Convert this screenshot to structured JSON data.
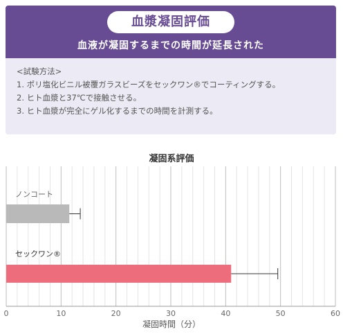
{
  "header": {
    "title": "血漿凝固評価",
    "subtitle": "血液が凝固するまでの時間が延長された"
  },
  "method": {
    "heading": "<試験方法>",
    "steps": [
      "1. ポリ塩化ビニル被覆ガラスビーズをセックワン®でコーティングする。",
      "2. ヒト血漿と37℃で接触させる。",
      "3. ヒト血漿が完全にゲル化するまでの時間を計測する。"
    ]
  },
  "chart_data": {
    "type": "bar",
    "orientation": "horizontal",
    "title": "凝固系評価",
    "xlabel": "凝固時間（分）",
    "ylabel": "",
    "xlim": [
      0,
      60
    ],
    "xticks": [
      0,
      10,
      20,
      30,
      40,
      50,
      60
    ],
    "minor_grid_step": 2,
    "grid": true,
    "categories": [
      "ノンコート",
      "セックワン®"
    ],
    "values": [
      11.5,
      41
    ],
    "error_high": [
      13.5,
      49.5
    ],
    "colors": [
      "#b9b9b9",
      "#ee6d7d"
    ]
  },
  "colors": {
    "accent": "#674c93",
    "card_background": "#eceaf4"
  }
}
